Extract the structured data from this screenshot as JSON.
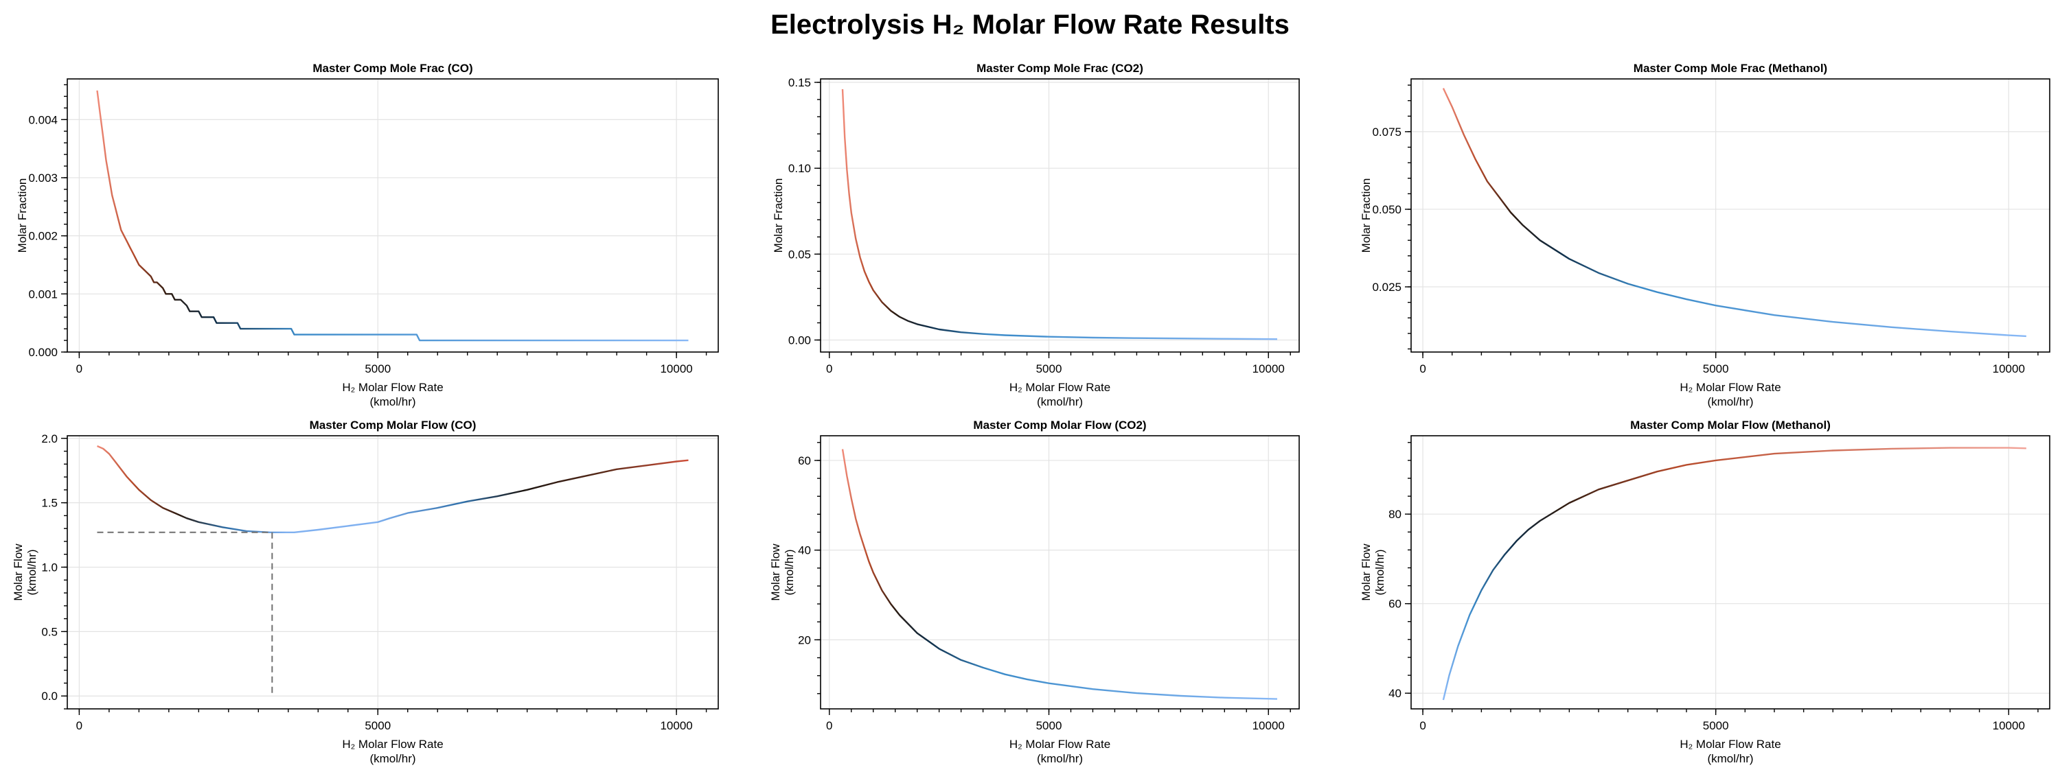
{
  "figure": {
    "title": "Electrolysis H₂ Molar Flow Rate Results"
  },
  "chart_data": [
    {
      "type": "line",
      "title": "Master Comp Mole Frac (CO)",
      "xlabel": [
        "H₂ Molar Flow Rate",
        "(kmol/hr)"
      ],
      "ylabel": [
        "Molar Fraction"
      ],
      "xlim": [
        -200,
        10700
      ],
      "ylim": [
        0,
        0.0047
      ],
      "xticks": [
        0,
        5000,
        10000
      ],
      "xtick_labels": [
        "0",
        "5000",
        "10000"
      ],
      "yticks": [
        0,
        0.001,
        0.002,
        0.003,
        0.004
      ],
      "ytick_labels": [
        "0.000",
        "0.001",
        "0.002",
        "0.003",
        "0.004"
      ],
      "grid": true,
      "series": [
        {
          "x": [
            300,
            350,
            400,
            450,
            500,
            550,
            600,
            650,
            700,
            750,
            800,
            850,
            900,
            1000,
            1100,
            1200,
            1250,
            1300,
            1400,
            1450,
            1550,
            1600,
            1700,
            1800,
            1850,
            2000,
            2050,
            2250,
            2300,
            2650,
            2700,
            3550,
            3600,
            5650,
            5700,
            10200
          ],
          "y": [
            0.0045,
            0.0041,
            0.0037,
            0.0033,
            0.003,
            0.0027,
            0.0025,
            0.0023,
            0.0021,
            0.002,
            0.0019,
            0.0018,
            0.0017,
            0.0015,
            0.0014,
            0.0013,
            0.0012,
            0.0012,
            0.0011,
            0.001,
            0.001,
            0.0009,
            0.0009,
            0.0008,
            0.0007,
            0.0007,
            0.0006,
            0.0006,
            0.0005,
            0.0005,
            0.0004,
            0.0004,
            0.0003,
            0.0003,
            0.0002,
            0.0002
          ]
        }
      ]
    },
    {
      "type": "line",
      "title": "Master Comp Mole Frac (CO2)",
      "xlabel": [
        "H₂ Molar Flow Rate",
        "(kmol/hr)"
      ],
      "ylabel": [
        "Molar Fraction"
      ],
      "xlim": [
        -200,
        10700
      ],
      "ylim": [
        -0.007,
        0.152
      ],
      "xticks": [
        0,
        5000,
        10000
      ],
      "xtick_labels": [
        "0",
        "5000",
        "10000"
      ],
      "yticks": [
        0,
        0.05,
        0.1,
        0.15
      ],
      "ytick_labels": [
        "0.00",
        "0.05",
        "0.10",
        "0.15"
      ],
      "grid": true,
      "series": [
        {
          "x": [
            300,
            350,
            400,
            450,
            500,
            600,
            700,
            800,
            900,
            1000,
            1200,
            1400,
            1600,
            1800,
            2000,
            2500,
            3000,
            3500,
            4000,
            5000,
            6000,
            7000,
            8000,
            9000,
            10200
          ],
          "y": [
            0.146,
            0.118,
            0.099,
            0.085,
            0.074,
            0.059,
            0.048,
            0.04,
            0.034,
            0.029,
            0.022,
            0.017,
            0.0135,
            0.011,
            0.0092,
            0.0062,
            0.0045,
            0.0035,
            0.0028,
            0.0019,
            0.0014,
            0.0011,
            0.0009,
            0.0007,
            0.0005
          ]
        }
      ]
    },
    {
      "type": "line",
      "title": "Master Comp Mole Frac (Methanol)",
      "xlabel": [
        "H₂ Molar Flow Rate",
        "(kmol/hr)"
      ],
      "ylabel": [
        "Molar Fraction"
      ],
      "xlim": [
        -200,
        10700
      ],
      "ylim": [
        0.004,
        0.092
      ],
      "xticks": [
        0,
        5000,
        10000
      ],
      "xtick_labels": [
        "0",
        "5000",
        "10000"
      ],
      "yticks": [
        0.025,
        0.05,
        0.075
      ],
      "ytick_labels": [
        "0.025",
        "0.050",
        "0.075"
      ],
      "grid": true,
      "series": [
        {
          "x": [
            350,
            500,
            700,
            900,
            1100,
            1300,
            1500,
            1700,
            2000,
            2500,
            3000,
            3500,
            4000,
            4500,
            5000,
            6000,
            7000,
            8000,
            9000,
            10000,
            10300
          ],
          "y": [
            0.089,
            0.083,
            0.074,
            0.066,
            0.059,
            0.054,
            0.049,
            0.045,
            0.04,
            0.034,
            0.0295,
            0.026,
            0.0233,
            0.021,
            0.019,
            0.0159,
            0.0137,
            0.012,
            0.0106,
            0.0094,
            0.0091
          ]
        }
      ]
    },
    {
      "type": "line",
      "title": "Master Comp Molar Flow (CO)",
      "xlabel": [
        "H₂ Molar Flow Rate",
        "(kmol/hr)"
      ],
      "ylabel": [
        "Molar Flow",
        "(kmol/hr)"
      ],
      "xlim": [
        -200,
        10700
      ],
      "ylim": [
        -0.1,
        2.02
      ],
      "xticks": [
        0,
        5000,
        10000
      ],
      "xtick_labels": [
        "0",
        "5000",
        "10000"
      ],
      "yticks": [
        0,
        0.5,
        1.0,
        1.5,
        2.0
      ],
      "ytick_labels": [
        "0.0",
        "0.5",
        "1.0",
        "1.5",
        "2.0"
      ],
      "grid": true,
      "series": [
        {
          "x": [
            300,
            400,
            500,
            600,
            800,
            1000,
            1200,
            1400,
            1600,
            1800,
            2000,
            2400,
            2800,
            3200,
            3600,
            4000,
            4500,
            5000,
            5200,
            5500,
            6000,
            6500,
            7000,
            7500,
            8000,
            8500,
            9000,
            9500,
            10000,
            10200
          ],
          "y": [
            1.94,
            1.92,
            1.88,
            1.82,
            1.7,
            1.6,
            1.52,
            1.46,
            1.42,
            1.38,
            1.35,
            1.31,
            1.28,
            1.27,
            1.27,
            1.29,
            1.32,
            1.35,
            1.38,
            1.42,
            1.46,
            1.51,
            1.55,
            1.6,
            1.66,
            1.71,
            1.76,
            1.79,
            1.82,
            1.83
          ]
        }
      ],
      "annotations": [
        {
          "type": "dashed-guide",
          "x": 3230,
          "y": 1.27
        }
      ]
    },
    {
      "type": "line",
      "title": "Master Comp Molar Flow (CO2)",
      "xlabel": [
        "H₂ Molar Flow Rate",
        "(kmol/hr)"
      ],
      "ylabel": [
        "Molar Flow",
        "(kmol/hr)"
      ],
      "xlim": [
        -200,
        10700
      ],
      "ylim": [
        4.6,
        65.5
      ],
      "xticks": [
        0,
        5000,
        10000
      ],
      "xtick_labels": [
        "0",
        "5000",
        "10000"
      ],
      "yticks": [
        20,
        40,
        60
      ],
      "ytick_labels": [
        "20",
        "40",
        "60"
      ],
      "grid": true,
      "series": [
        {
          "x": [
            300,
            400,
            500,
            600,
            700,
            800,
            900,
            1000,
            1200,
            1400,
            1600,
            1800,
            2000,
            2500,
            3000,
            3500,
            4000,
            4500,
            5000,
            6000,
            7000,
            8000,
            9000,
            10200
          ],
          "y": [
            62.5,
            56.5,
            51.5,
            47,
            43.5,
            40.5,
            37.5,
            35,
            31,
            28,
            25.5,
            23.5,
            21.5,
            18,
            15.5,
            13.8,
            12.3,
            11.2,
            10.3,
            9.0,
            8.1,
            7.5,
            7.1,
            6.8
          ]
        }
      ]
    },
    {
      "type": "line",
      "title": "Master Comp Molar Flow (Methanol)",
      "xlabel": [
        "H₂ Molar Flow Rate",
        "(kmol/hr)"
      ],
      "ylabel": [
        "Molar Flow",
        "(kmol/hr)"
      ],
      "xlim": [
        -200,
        10700
      ],
      "ylim": [
        36.5,
        97.5
      ],
      "xticks": [
        0,
        5000,
        10000
      ],
      "xtick_labels": [
        "0",
        "5000",
        "10000"
      ],
      "yticks": [
        40,
        60,
        80
      ],
      "ytick_labels": [
        "40",
        "60",
        "80"
      ],
      "grid": true,
      "series": [
        {
          "x": [
            350,
            450,
            600,
            800,
            1000,
            1200,
            1400,
            1600,
            1800,
            2000,
            2500,
            3000,
            3500,
            4000,
            4500,
            5000,
            6000,
            7000,
            8000,
            9000,
            10000,
            10300
          ],
          "y": [
            38.5,
            44,
            50.5,
            57.5,
            63,
            67.5,
            71,
            74,
            76.5,
            78.5,
            82.5,
            85.5,
            87.5,
            89.5,
            91,
            92,
            93.5,
            94.2,
            94.6,
            94.8,
            94.8,
            94.7
          ]
        }
      ]
    }
  ]
}
